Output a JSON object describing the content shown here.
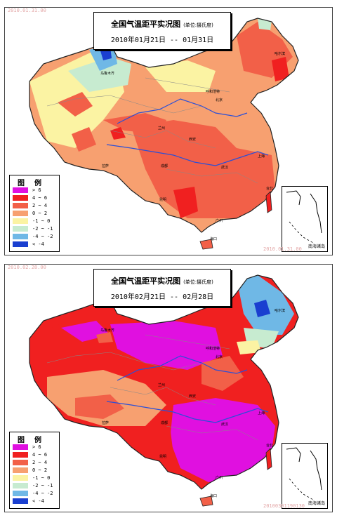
{
  "maps": [
    {
      "title": "全国气温距平实况图",
      "unit": "(单位:摄氏度)",
      "date_range": "2010年01月21日 -- 01月31日",
      "watermark_top": "2010.01.31.00",
      "watermark_bottom": "2010.01.31.00"
    },
    {
      "title": "全国气温距平实况图",
      "unit": "(单位:摄氏度)",
      "date_range": "2010年02月21日 -- 02月28日",
      "watermark_top": "2010.02.28.00",
      "watermark_bottom": "20100301190130"
    }
  ],
  "legend": {
    "title": "图例",
    "items": [
      {
        "label": "> 6",
        "color": "#e010e0"
      },
      {
        "label": "4 ~ 6",
        "color": "#f02020"
      },
      {
        "label": "2 ~ 4",
        "color": "#f26048"
      },
      {
        "label": "0 ~ 2",
        "color": "#f7a070"
      },
      {
        "label": "-1 ~ 0",
        "color": "#fbf3a3"
      },
      {
        "label": "-2 ~ -1",
        "color": "#c7ebd0"
      },
      {
        "label": "-4 ~ -2",
        "color": "#6fb8e6"
      },
      {
        "label": "< -4",
        "color": "#1a3fd0"
      }
    ]
  },
  "inset_caption": "南海诸岛",
  "cities": {
    "beijing": "北京",
    "wuhan": "武汉",
    "guangzhou": "广州",
    "haikou": "海口",
    "shanghai": "上海",
    "taibei": "台北",
    "chengdu": "成都",
    "lasa": "拉萨",
    "harbin": "哈尔滨",
    "lanzhou": "兰州",
    "xian": "西安",
    "kunming": "昆明",
    "urumqi": "乌鲁木齐",
    "huhehaote": "呼和浩特"
  }
}
